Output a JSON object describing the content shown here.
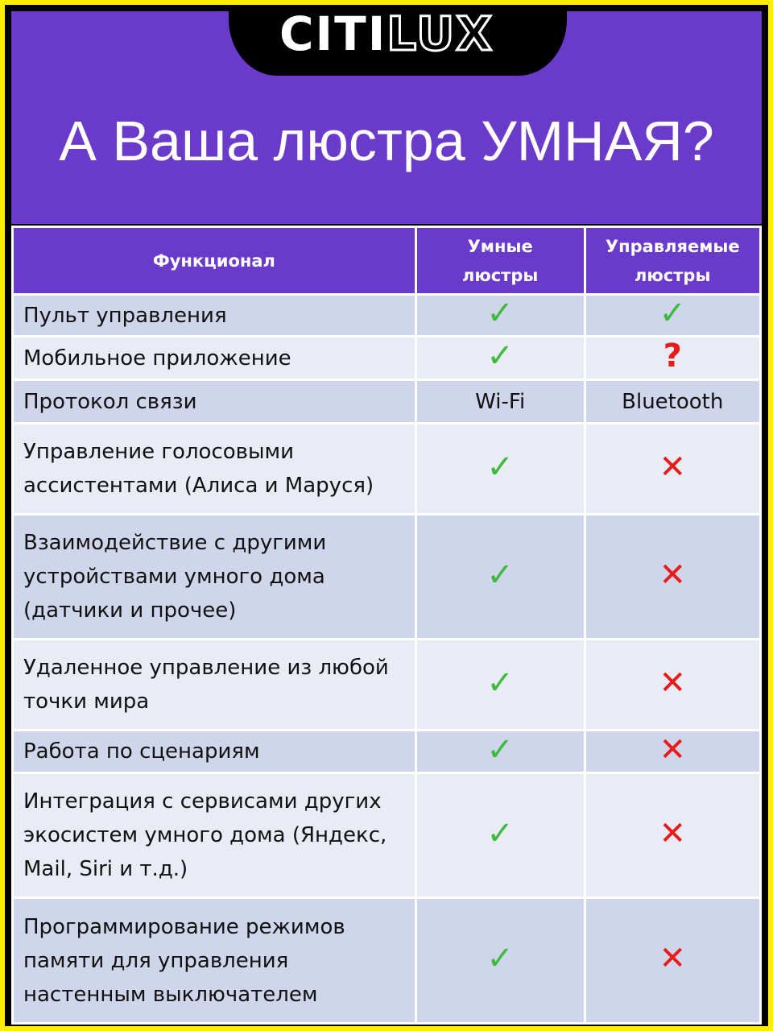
{
  "brand": {
    "logo": "CITILUX",
    "logo_part1": "CITI",
    "logo_part2": "LUX"
  },
  "title": "А Ваша люстра УМНАЯ?",
  "colors": {
    "purple": "#6a3acb",
    "yellow": "#ffee00",
    "check": "#3dbb3d",
    "cross": "#e81b1b"
  },
  "table": {
    "headers": [
      "Функционал",
      "Умные люстры",
      "Управляемые люстры"
    ],
    "rows": [
      {
        "feature": "Пульт управления",
        "smart": "✓",
        "controlled": "✓",
        "h": 52
      },
      {
        "feature": "Мобильное приложение",
        "smart": "✓",
        "controlled": "?",
        "h": 54
      },
      {
        "feature": "Протокол связи",
        "smart": "Wi-Fi",
        "controlled": "Bluetooth",
        "h": 54
      },
      {
        "feature": "Управление голосовыми ассистентами (Алиса и Маруся)",
        "smart": "✓",
        "controlled": "✕",
        "h": 113
      },
      {
        "feature": "Взаимодействие с другими устройствами умного дома (датчики и прочее)",
        "smart": "✓",
        "controlled": "✕",
        "h": 155
      },
      {
        "feature": "Удаленное управление из любой точки мира",
        "smart": "✓",
        "controlled": "✕",
        "h": 113
      },
      {
        "feature": "Работа по сценариям",
        "smart": "✓",
        "controlled": "✕",
        "h": 53
      },
      {
        "feature": "Интеграция с сервисами других экосистем умного дома (Яндекс, Mail, Siri и т.д.)",
        "smart": "✓",
        "controlled": "✕",
        "h": 155
      },
      {
        "feature": "Программирование режимов памяти для управления настенным выключателем",
        "smart": "✓",
        "controlled": "✕",
        "h": 156
      }
    ]
  }
}
